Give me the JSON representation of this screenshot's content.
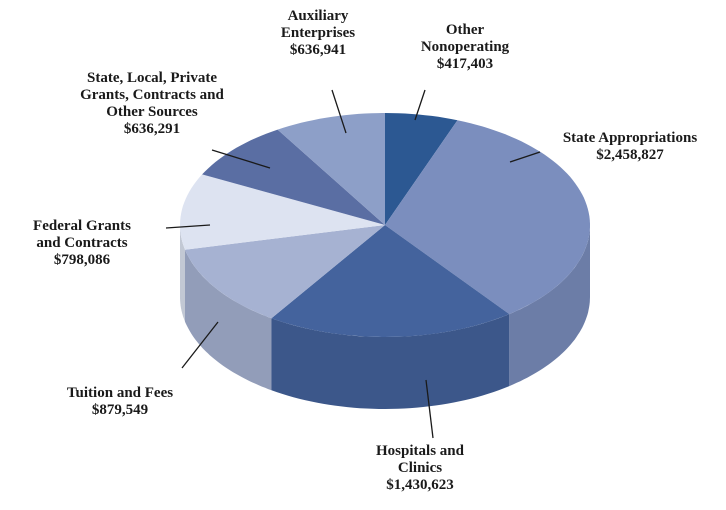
{
  "chart_data": {
    "type": "pie3d",
    "categories": [
      "Other Nonoperating",
      "State Appropriations",
      "Hospitals and Clinics",
      "Tuition and Fees",
      "Federal Grants and Contracts",
      "State, Local, Private Grants, Contracts and Other Sources",
      "Auxiliary Enterprises"
    ],
    "values": [
      417403,
      2458827,
      1430623,
      879549,
      798086,
      636291,
      636941
    ],
    "value_labels": [
      "$417,403",
      "$2,458,827",
      "$1,430,623",
      "$879,549",
      "$798,086",
      "$636,291",
      "$636,941"
    ],
    "colors": [
      "#2c5892",
      "#7b8ebe",
      "#44639d",
      "#a6b2d2",
      "#dde3f1",
      "#5a6ea3",
      "#8d9fc8"
    ]
  }
}
